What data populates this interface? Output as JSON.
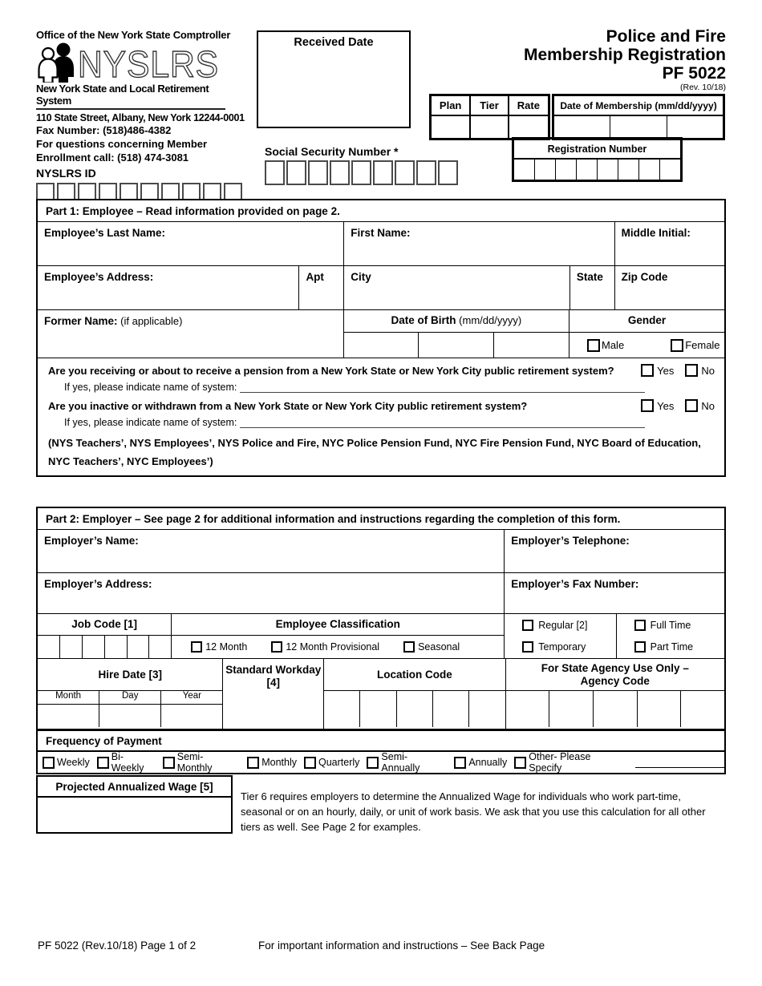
{
  "header": {
    "office_line": "Office of the New York State Comptroller",
    "logo_acronym": "NYSLRS",
    "logo_subtitle": "New York State and Local Retirement System",
    "address": "110 State Street, Albany, New York 12244-0001",
    "fax": "Fax Number: (518)486-4382",
    "questions_line1": "For questions concerning Member",
    "questions_line2": "Enrollment call: (518) 474-3081",
    "nyslrs_id_label": "NYSLRS ID",
    "nyslrs_id_boxes": 10,
    "received_date_label": "Received Date",
    "title_line1": "Police and Fire",
    "title_line2": "Membership Registration",
    "title_line3": "PF 5022",
    "revision": "(Rev. 10/18)",
    "plan_label": "Plan",
    "tier_label": "Tier",
    "rate_label": "Rate",
    "membership_date_label": "Date of Membership (mm/dd/yyyy)",
    "membership_date_cells": 3,
    "ssn_label": "Social Security Number *",
    "ssn_boxes": 9,
    "registration_label": "Registration Number",
    "registration_boxes": 8
  },
  "part1": {
    "title": "Part 1: Employee – Read information provided on page 2.",
    "last_name_label": "Employee’s Last Name:",
    "first_name_label": "First Name:",
    "middle_initial_label": "Middle Initial:",
    "address_label": "Employee’s Address:",
    "apt_label": "Apt",
    "city_label": "City",
    "state_label": "State",
    "zip_label": "Zip Code",
    "former_name_label": "Former Name:",
    "former_name_note": " (if applicable)",
    "dob_label": "Date of Birth",
    "dob_format": " (mm/dd/yyyy)",
    "dob_cells": 3,
    "gender_label": "Gender",
    "gender_options": [
      "Male",
      "Female"
    ],
    "question1": "Are you receiving or about to receive a pension from a New York State or New York City public retirement system?",
    "question2": "Are you inactive or withdrawn from a New York State or New York City public retirement system?",
    "yes_no": [
      "Yes",
      "No"
    ],
    "if_yes_label": "If yes, please indicate name of system:",
    "systems_note": "(NYS Teachers’, NYS Employees’, NYS Police and Fire, NYC Police Pension Fund, NYC Fire Pension Fund, NYC Board of Education, NYC Teachers’, NYC Employees’)"
  },
  "part2": {
    "title": "Part 2:  Employer – See page 2 for additional information and instructions regarding the completion of this form.",
    "employer_name_label": "Employer’s Name:",
    "employer_phone_label": "Employer’s Telephone:",
    "employer_address_label": "Employer’s Address:",
    "employer_fax_label": "Employer’s Fax Number:",
    "job_code_label": "Job Code [1]",
    "job_code_boxes": 6,
    "classification_label": "Employee Classification",
    "classification_options": [
      "12 Month",
      "12 Month Provisional",
      "Seasonal"
    ],
    "status_col1": [
      "Regular [2]",
      "Temporary"
    ],
    "status_col2": [
      "Full Time",
      "Part Time"
    ],
    "hire_date_label": "Hire Date [3]",
    "hire_date_cols": [
      "Month",
      "Day",
      "Year"
    ],
    "standard_workday_label": "Standard Workday [4]",
    "location_code_label": "Location Code",
    "location_code_boxes": 5,
    "agency_code_label": "For State Agency Use Only – Agency Code",
    "agency_code_boxes": 5,
    "frequency_label": "Frequency of Payment",
    "frequency_options": [
      "Weekly",
      "Bi-Weekly",
      "Semi- Monthly",
      "Monthly",
      "Quarterly",
      "Semi- Annually",
      "Annually",
      "Other- Please Specify"
    ],
    "wage_label": "Projected Annualized Wage [5]",
    "tier6_note": "Tier 6 requires employers to determine the Annualized Wage for individuals who work part-time, seasonal or on an hourly, daily, or unit of work basis. We ask that you use this calculation for all other tiers as well. See Page 2 for examples."
  },
  "footer": {
    "left": "PF 5022 (Rev.10/18) Page 1 of 2",
    "center": "For important information and instructions – See Back Page"
  }
}
